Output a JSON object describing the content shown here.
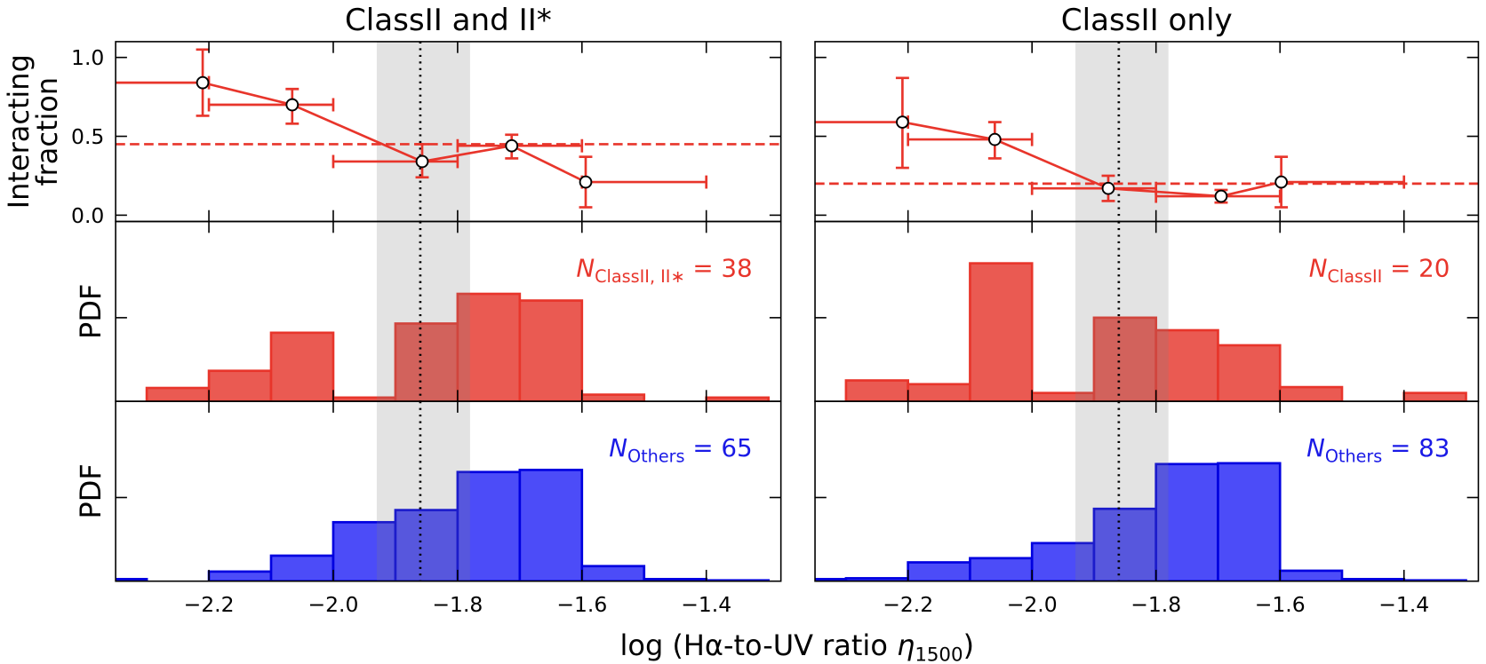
{
  "figure": {
    "xlabel": {
      "main": "log (Hα-to-UV ratio ",
      "symbol": "η",
      "subscript": "1500",
      "close": ")"
    }
  },
  "chart_data": [
    {
      "type": "errorbar",
      "title": "ClassII and II*",
      "ylabel": [
        "Interacting",
        "fraction"
      ],
      "color": "#e8352b",
      "x": [
        -2.21,
        -2.066,
        -1.857,
        -1.713,
        -1.594
      ],
      "y": [
        0.84,
        0.7,
        0.34,
        0.44,
        0.21
      ],
      "y_low": [
        0.63,
        0.58,
        0.24,
        0.36,
        0.05
      ],
      "y_high": [
        1.05,
        0.8,
        0.45,
        0.51,
        0.37
      ],
      "x_low": [
        -2.4,
        -2.2,
        -2.0,
        -1.8,
        -1.6
      ],
      "x_high": [
        -2.2,
        -2.0,
        -1.8,
        -1.6,
        -1.4
      ],
      "reference_line": 0.45,
      "band": [
        -1.93,
        -1.78
      ],
      "marker_line": -1.86,
      "xlim": [
        -2.35,
        -1.28
      ],
      "xticks": [
        -2.2,
        -2.0,
        -1.8,
        -1.6,
        -1.4
      ],
      "ylim": [
        -0.04,
        1.1
      ],
      "yticks": [
        {
          "value": 0,
          "label": "0.0"
        },
        {
          "value": 0.5,
          "label": "0.5"
        },
        {
          "value": 1,
          "label": "1.0"
        }
      ]
    },
    {
      "type": "histogram",
      "ylabel": "PDF",
      "color": "#ea5a52",
      "edgecolor": "#e8352b",
      "bins": [
        -2.4,
        -2.3,
        -2.2,
        -2.1,
        -2.0,
        -1.9,
        -1.8,
        -1.7,
        -1.6,
        -1.5,
        -1.4,
        -1.3
      ],
      "values": [
        0,
        0.32,
        0.73,
        1.64,
        0.09,
        1.86,
        2.57,
        2.41,
        0.16,
        0,
        0.09
      ],
      "annotation": {
        "symbol": "N",
        "subscript": "ClassII, II∗",
        "text": " = 38"
      },
      "band": [
        -1.93,
        -1.78
      ],
      "marker_line": -1.86,
      "xlim": [
        -2.35,
        -1.28
      ],
      "xticks": [
        -2.2,
        -2.0,
        -1.8,
        -1.6,
        -1.4
      ],
      "ylim": [
        0,
        4.3
      ],
      "yticks": [
        2
      ]
    },
    {
      "type": "histogram",
      "ylabel": "PDF",
      "color": "#4c4cf8",
      "edgecolor": "#0000e0",
      "bins": [
        -2.4,
        -2.3,
        -2.2,
        -2.1,
        -2.0,
        -1.9,
        -1.8,
        -1.7,
        -1.6,
        -1.5,
        -1.4,
        -1.3
      ],
      "values": [
        0.05,
        0,
        0.23,
        0.61,
        1.41,
        1.7,
        2.61,
        2.66,
        0.36,
        0.05,
        0.02
      ],
      "annotation": {
        "symbol": "N",
        "subscript": "Others",
        "text": " = 65"
      },
      "band": [
        -1.93,
        -1.78
      ],
      "marker_line": -1.86,
      "xlim": [
        -2.35,
        -1.28
      ],
      "xticks": [
        {
          "value": -2.2,
          "label": "−2.2"
        },
        {
          "value": -2.0,
          "label": "−2.0"
        },
        {
          "value": -1.8,
          "label": "−1.8"
        },
        {
          "value": -1.6,
          "label": "−1.6"
        },
        {
          "value": -1.4,
          "label": "−1.4"
        }
      ],
      "ylim": [
        0,
        4.3
      ],
      "yticks": [
        2
      ]
    },
    {
      "type": "errorbar",
      "title": "ClassII only",
      "color": "#e8352b",
      "x": [
        -2.209,
        -2.06,
        -1.877,
        -1.695,
        -1.598
      ],
      "y": [
        0.59,
        0.48,
        0.17,
        0.12,
        0.21
      ],
      "y_low": [
        0.3,
        0.36,
        0.09,
        0.08,
        0.05
      ],
      "y_high": [
        0.87,
        0.59,
        0.25,
        0.16,
        0.37
      ],
      "x_low": [
        -2.4,
        -2.2,
        -2.0,
        -1.8,
        -1.6
      ],
      "x_high": [
        -2.2,
        -2.0,
        -1.8,
        -1.6,
        -1.4
      ],
      "reference_line": 0.2,
      "band": [
        -1.93,
        -1.78
      ],
      "marker_line": -1.86,
      "xlim": [
        -2.35,
        -1.28
      ],
      "xticks": [
        -2.2,
        -2.0,
        -1.8,
        -1.6,
        -1.4
      ],
      "ylim": [
        -0.04,
        1.1
      ],
      "yticks": [
        0,
        0.5,
        1
      ]
    },
    {
      "type": "histogram",
      "color": "#ea5a52",
      "edgecolor": "#e8352b",
      "bins": [
        -2.4,
        -2.3,
        -2.2,
        -2.1,
        -2.0,
        -1.9,
        -1.8,
        -1.7,
        -1.6,
        -1.5,
        -1.4,
        -1.3
      ],
      "values": [
        0,
        0.5,
        0.41,
        3.3,
        0.2,
        2.0,
        1.7,
        1.34,
        0.34,
        0,
        0.2
      ],
      "annotation": {
        "symbol": "N",
        "subscript": "ClassII",
        "text": " = 20"
      },
      "band": [
        -1.93,
        -1.78
      ],
      "marker_line": -1.86,
      "xlim": [
        -2.35,
        -1.28
      ],
      "xticks": [
        -2.2,
        -2.0,
        -1.8,
        -1.6,
        -1.4
      ],
      "ylim": [
        0,
        4.3
      ],
      "yticks": [
        2
      ]
    },
    {
      "type": "histogram",
      "color": "#4c4cf8",
      "edgecolor": "#0000e0",
      "bins": [
        -2.4,
        -2.3,
        -2.2,
        -2.1,
        -2.0,
        -1.9,
        -1.8,
        -1.7,
        -1.6,
        -1.5,
        -1.4,
        -1.3
      ],
      "values": [
        0.05,
        0.07,
        0.45,
        0.55,
        0.91,
        1.73,
        2.8,
        2.82,
        0.25,
        0.05,
        0.02
      ],
      "annotation": {
        "symbol": "N",
        "subscript": "Others",
        "text": " = 83"
      },
      "band": [
        -1.93,
        -1.78
      ],
      "marker_line": -1.86,
      "xlim": [
        -2.35,
        -1.28
      ],
      "xticks": [
        {
          "value": -2.2,
          "label": "−2.2"
        },
        {
          "value": -2.0,
          "label": "−2.0"
        },
        {
          "value": -1.8,
          "label": "−1.8"
        },
        {
          "value": -1.6,
          "label": "−1.6"
        },
        {
          "value": -1.4,
          "label": "−1.4"
        }
      ],
      "ylim": [
        0,
        4.3
      ],
      "yticks": [
        2
      ]
    }
  ]
}
